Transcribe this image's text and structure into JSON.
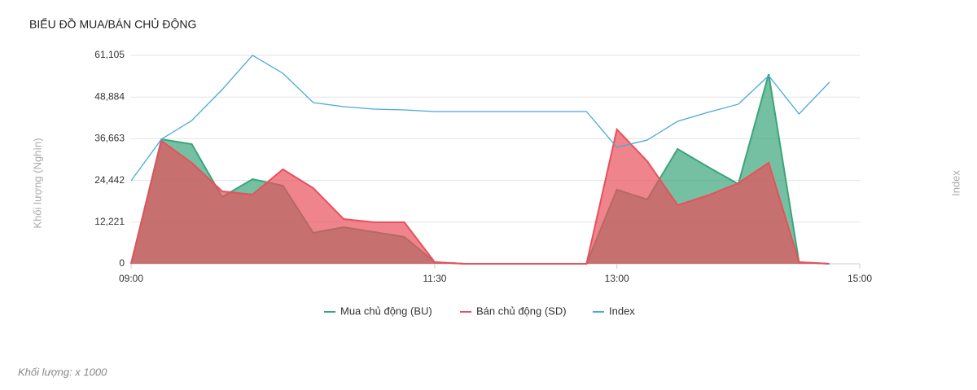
{
  "chart_data": {
    "type": "area",
    "title": "BIỂU ĐỒ MUA/BÁN CHỦ ĐỘNG",
    "y_label": "Khối lượng (Nghìn)",
    "y2_label": "Index",
    "note": "Khối lượng: x 1000",
    "x": [
      "09:00",
      "09:15",
      "09:30",
      "09:45",
      "10:00",
      "10:15",
      "10:30",
      "10:45",
      "11:00",
      "11:15",
      "11:30",
      "11:45",
      "12:00",
      "12:15",
      "12:30",
      "12:45",
      "13:00",
      "13:15",
      "13:30",
      "13:45",
      "14:00",
      "14:15",
      "14:30",
      "14:45"
    ],
    "xlim": [
      "09:00",
      "15:00"
    ],
    "xticks": [
      "09:00",
      "11:30",
      "13:00",
      "15:00"
    ],
    "ylim": [
      0,
      61105
    ],
    "yticks": [
      0,
      {
        "value": 12221,
        "label": "12,221"
      },
      {
        "value": 24442,
        "label": "24,442"
      },
      {
        "value": 36663,
        "label": "36,663"
      },
      {
        "value": 48884,
        "label": "48,884"
      },
      {
        "value": 61105,
        "label": "61,105"
      }
    ],
    "grid": true,
    "legend": "bottom",
    "series": [
      {
        "name": "Mua chủ động (BU)",
        "color": "#3aa57a",
        "kind": "area",
        "values": [
          0,
          36520,
          35090,
          19570,
          24820,
          22920,
          9070,
          10740,
          9310,
          7880,
          480,
          0,
          0,
          0,
          0,
          0,
          21720,
          18860,
          33660,
          28410,
          23390,
          55620,
          480,
          0
        ]
      },
      {
        "name": "Bán chủ động (SD)",
        "color": "#e8505b",
        "kind": "area",
        "values": [
          0,
          36040,
          29600,
          21240,
          20290,
          27690,
          22200,
          13130,
          12170,
          12170,
          480,
          0,
          0,
          0,
          0,
          0,
          39390,
          30080,
          17190,
          20050,
          23630,
          29600,
          480,
          0
        ]
      },
      {
        "name": "Index",
        "color": "#4aa8d8",
        "kind": "line",
        "values": [
          24350,
          36520,
          42010,
          51080,
          61110,
          55860,
          47260,
          46070,
          45350,
          45110,
          44640,
          44640,
          44640,
          44640,
          44640,
          44640,
          34130,
          36280,
          41770,
          44400,
          46790,
          55140,
          43920,
          53230
        ]
      }
    ]
  }
}
